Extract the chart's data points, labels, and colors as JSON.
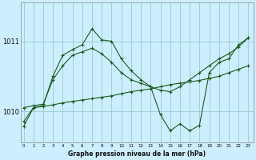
{
  "title": "Graphe pression niveau de la mer (hPa)",
  "background_color": "#cceeff",
  "grid_color": "#99cccc",
  "line_color": "#1a5c1a",
  "x_ticks": [
    0,
    1,
    2,
    3,
    4,
    5,
    6,
    7,
    8,
    9,
    10,
    11,
    12,
    13,
    14,
    15,
    16,
    17,
    18,
    19,
    20,
    21,
    22,
    23
  ],
  "y_ticks": [
    1010,
    1011
  ],
  "ylim": [
    1009.55,
    1011.55
  ],
  "xlim": [
    -0.3,
    23.5
  ],
  "series1_x": [
    0,
    1,
    2,
    3,
    4,
    5,
    6,
    7,
    8,
    9,
    10,
    11,
    12,
    13,
    14,
    15,
    16,
    17,
    18,
    19,
    20,
    21,
    22,
    23
  ],
  "series1_y": [
    1009.85,
    1010.05,
    1010.07,
    1010.09,
    1010.12,
    1010.14,
    1010.16,
    1010.18,
    1010.2,
    1010.22,
    1010.25,
    1010.28,
    1010.3,
    1010.32,
    1010.35,
    1010.38,
    1010.4,
    1010.42,
    1010.44,
    1010.47,
    1010.5,
    1010.55,
    1010.6,
    1010.65
  ],
  "series2_x": [
    0,
    1,
    2,
    3,
    4,
    5,
    6,
    7,
    8,
    9,
    10,
    11,
    12,
    13,
    14,
    15,
    16,
    17,
    18,
    19,
    20,
    21,
    22,
    23
  ],
  "series2_y": [
    1010.05,
    1010.08,
    1010.1,
    1010.45,
    1010.65,
    1010.8,
    1010.85,
    1010.9,
    1010.82,
    1010.7,
    1010.55,
    1010.45,
    1010.4,
    1010.35,
    1010.3,
    1010.28,
    1010.35,
    1010.45,
    1010.55,
    1010.65,
    1010.75,
    1010.82,
    1010.92,
    1011.05
  ],
  "series3_x": [
    0,
    1,
    2,
    3,
    4,
    5,
    6,
    7,
    8,
    9,
    10,
    11,
    12,
    13,
    14,
    15,
    16,
    17,
    18,
    19,
    20,
    21,
    22,
    23
  ],
  "series3_y": [
    1009.78,
    1010.05,
    1010.08,
    1010.5,
    1010.8,
    1010.88,
    1010.95,
    1011.18,
    1011.02,
    1011.0,
    1010.75,
    1010.58,
    1010.45,
    1010.35,
    1009.95,
    1009.72,
    1009.82,
    1009.72,
    1009.8,
    1010.55,
    1010.7,
    1010.75,
    1010.95,
    1011.05
  ]
}
